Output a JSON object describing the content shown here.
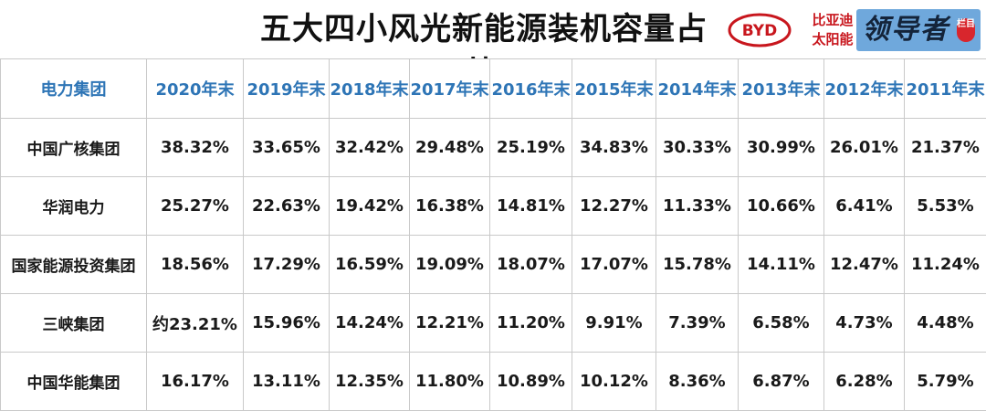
{
  "title": "五大四小风光新能源装机容量占比",
  "brand": {
    "byd_logo_text": "BYD",
    "line1": "比亚迪",
    "line2": "太阳能",
    "leader_text": "领导者",
    "leader_tag": "栏目"
  },
  "table": {
    "header_group": "电力集团",
    "years": [
      "2020年末",
      "2019年末",
      "2018年末",
      "2017年末",
      "2016年末",
      "2015年末",
      "2014年末",
      "2013年末",
      "2012年末",
      "2011年末"
    ],
    "rows": [
      {
        "name": "中国广核集团",
        "values": [
          "38.32%",
          "33.65%",
          "32.42%",
          "29.48%",
          "25.19%",
          "34.83%",
          "30.33%",
          "30.99%",
          "26.01%",
          "21.37%"
        ]
      },
      {
        "name": "华润电力",
        "values": [
          "25.27%",
          "22.63%",
          "19.42%",
          "16.38%",
          "14.81%",
          "12.27%",
          "11.33%",
          "10.66%",
          "6.41%",
          "5.53%"
        ]
      },
      {
        "name": "国家能源投资集团",
        "values": [
          "18.56%",
          "17.29%",
          "16.59%",
          "19.09%",
          "18.07%",
          "17.07%",
          "15.78%",
          "14.11%",
          "12.47%",
          "11.24%"
        ]
      },
      {
        "name": "三峡集团",
        "values": [
          "约23.21%",
          "15.96%",
          "14.24%",
          "12.21%",
          "11.20%",
          "9.91%",
          "7.39%",
          "6.58%",
          "4.73%",
          "4.48%"
        ]
      },
      {
        "name": "中国华能集团",
        "values": [
          "16.17%",
          "13.11%",
          "12.35%",
          "11.80%",
          "10.89%",
          "10.12%",
          "8.36%",
          "6.87%",
          "6.28%",
          "5.79%"
        ]
      }
    ]
  }
}
